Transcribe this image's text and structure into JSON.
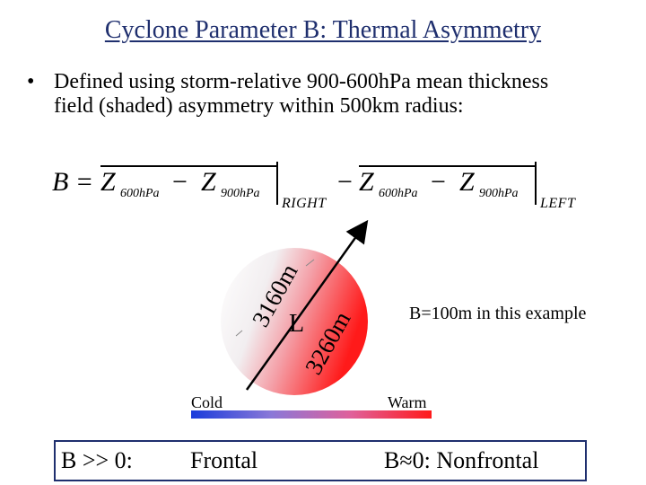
{
  "slide": {
    "title": "Cyclone Parameter B:  Thermal Asymmetry",
    "bullet_symbol": "•",
    "bullet_text": "Defined using storm-relative 900-600hPa mean thickness field (shaded) asymmetry within 500km radius:"
  },
  "formula": {
    "lhs": "B = ",
    "z": "Z",
    "minus": "−",
    "sub_600": "600hPa",
    "sub_900": "900hPa",
    "right_label": "RIGHT",
    "left_label": "LEFT"
  },
  "diagram": {
    "label_left": "3160m",
    "label_right": "3260m",
    "center_label": "L",
    "example_note": "B=100m in this example",
    "cold_label": "Cold",
    "warm_label": "Warm"
  },
  "bottom": {
    "b_positive": "B >> 0:",
    "frontal": "Frontal",
    "b_zero": "B≈0:  Nonfrontal"
  },
  "colors": {
    "title": "#1f2f6e",
    "cold": "#1a3cdb",
    "warm": "#ff1a1a"
  }
}
